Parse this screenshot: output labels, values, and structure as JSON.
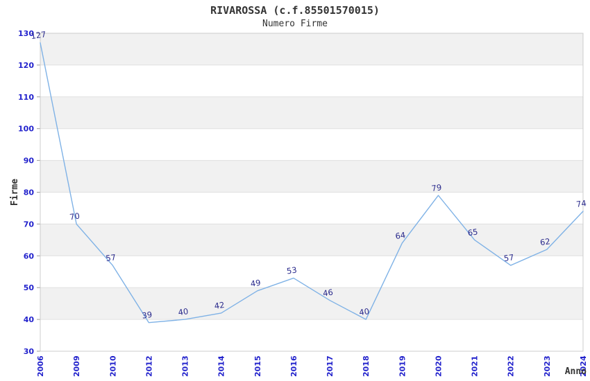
{
  "chart_data": {
    "type": "line",
    "title": "RIVAROSSA (c.f.85501570015)",
    "subtitle": "Numero Firme",
    "xlabel": "Anno",
    "ylabel": "Firme",
    "categories": [
      "2006",
      "2009",
      "2010",
      "2012",
      "2013",
      "2014",
      "2015",
      "2016",
      "2017",
      "2018",
      "2019",
      "2020",
      "2021",
      "2022",
      "2023",
      "2024"
    ],
    "values": [
      127,
      70,
      57,
      39,
      40,
      42,
      49,
      53,
      46,
      40,
      64,
      79,
      65,
      57,
      62,
      74
    ],
    "ylim": [
      30,
      130
    ],
    "y_ticks": [
      30,
      40,
      50,
      60,
      70,
      80,
      90,
      100,
      110,
      120,
      130
    ],
    "grid": "horizontal gridlines with alternating shaded bands",
    "legend": "none",
    "point_labels_visible": true,
    "colors": {
      "background": "#ffffff",
      "line": "#7fb2e6",
      "tick_label": "#2222cc",
      "point_label": "#2a2a8c",
      "band": "#f1f1f1",
      "grid": "#e0e0e0",
      "border": "#cccccc",
      "tick_mark": "#999999",
      "text": "#333333"
    }
  }
}
